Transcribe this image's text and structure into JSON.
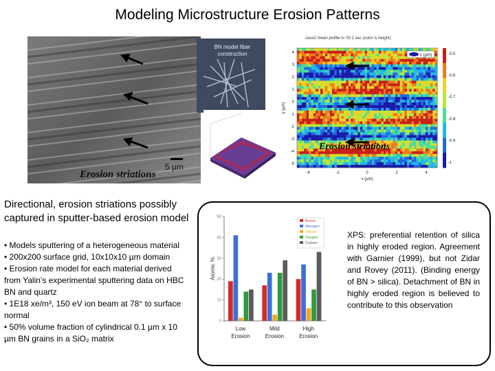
{
  "title": "Modeling Microstructure Erosion Patterns",
  "sem": {
    "label": "Erosion striations",
    "scale": "5 µm"
  },
  "inset_model": {
    "label": "BN model fiber construction"
  },
  "heatmap": {
    "title": "case2 mean profile t= 00.1 sec (color is height)",
    "label": "Erosion striations",
    "xlabel": "x (µm)",
    "ylabel": "y (µm)",
    "xticks": [
      "-4",
      "-2",
      "0",
      "2",
      "4"
    ],
    "yticks": [
      "4",
      "3",
      "2",
      "1",
      "0",
      "-1",
      "-2",
      "-3",
      "-4",
      "-5"
    ],
    "colorbar_ticks": [
      "-0.5",
      "-0.6",
      "-0.7",
      "-0.8",
      "-0.9",
      "-1"
    ],
    "legend": "z (µm)"
  },
  "left": {
    "heading": "Directional, erosion striations possibly captured in sputter-based erosion model",
    "bullets": [
      "• Models sputtering of a heterogeneous material",
      "• 200x200 surface grid, 10x10x10 µm domain",
      "• Erosion rate model for each material derived from Yalin’s experimental sputtering data on HBC BN and quartz",
      "• 1E18 xe/m³, 150 eV ion beam at 78° to surface normal",
      "• 50% volume fraction of cylindrical 0.1 µm x 10 µm BN grains in a SiO₂ matrix"
    ]
  },
  "xps_text": "XPS: preferential retention of silica in highly eroded region. Agreement with Garnier (1999), but not Zidar and Rovey (2011). (Binding energy of BN > silica). Detachment of BN in highly eroded region is believed to contribute to this observation",
  "chart_data": {
    "type": "bar",
    "ylabel": "Atomic %",
    "ylim": [
      0,
      50
    ],
    "yticks": [
      "0",
      "10",
      "20",
      "30",
      "40",
      "50"
    ],
    "categories": [
      "Low Erosion",
      "Mild Erosion",
      "High Erosion"
    ],
    "series": [
      {
        "name": "Boron",
        "color": "#d42a2a",
        "values": [
          19,
          17,
          20
        ]
      },
      {
        "name": "Nitrogen",
        "color": "#3d6fd8",
        "values": [
          41,
          23,
          27
        ]
      },
      {
        "name": "Silicon",
        "color": "#f5a623",
        "values": [
          1.5,
          3,
          6
        ]
      },
      {
        "name": "Oxygen",
        "color": "#2e9a3e",
        "values": [
          14,
          23,
          15
        ]
      },
      {
        "name": "Carbon",
        "color": "#5a5a5a",
        "values": [
          15,
          29,
          33
        ]
      }
    ]
  }
}
